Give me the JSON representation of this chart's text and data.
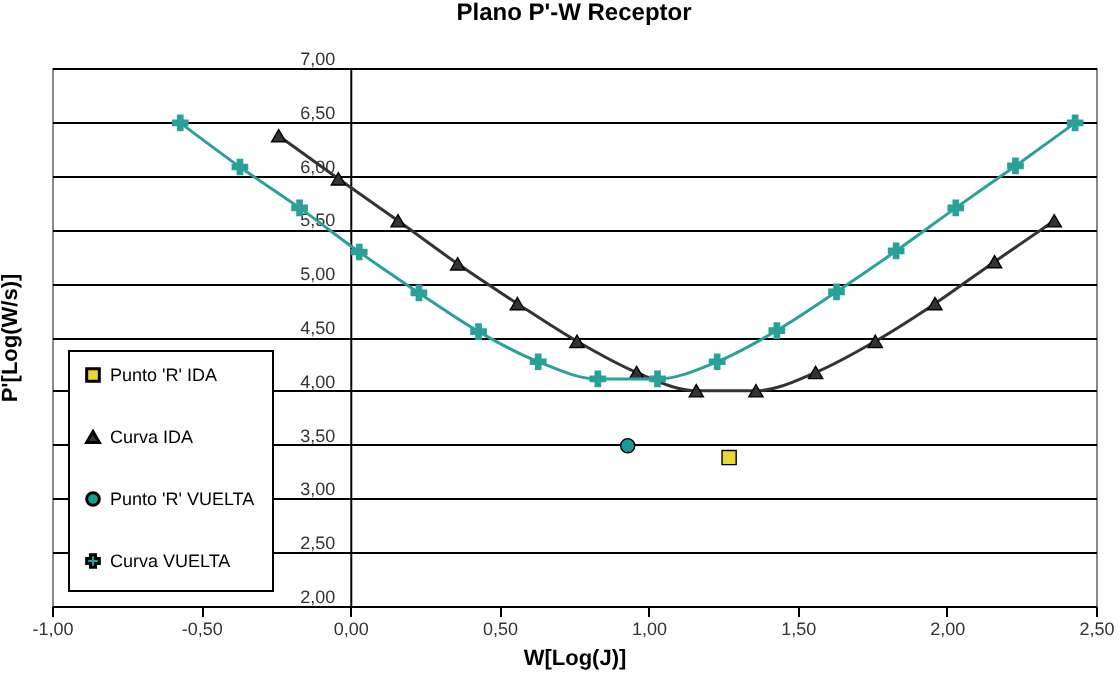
{
  "chart_data": {
    "type": "line",
    "title": "Plano P'-W Receptor",
    "xlabel": "W[Log(J)]",
    "ylabel": "P'[Log(W/s)]",
    "xlim": [
      -1,
      2.5
    ],
    "ylim": [
      2,
      7
    ],
    "xticks": [
      {
        "value": -1,
        "label": "-1,00"
      },
      {
        "value": -0.5,
        "label": "-0,50"
      },
      {
        "value": 0,
        "label": "0,00"
      },
      {
        "value": 0.5,
        "label": "0,50"
      },
      {
        "value": 1,
        "label": "1,00"
      },
      {
        "value": 1.5,
        "label": "1,50"
      },
      {
        "value": 2,
        "label": "2,00"
      },
      {
        "value": 2.5,
        "label": "2,50"
      }
    ],
    "yticks": [
      {
        "value": 2,
        "label": "2,00"
      },
      {
        "value": 2.5,
        "label": "2,50"
      },
      {
        "value": 3,
        "label": "3,00"
      },
      {
        "value": 3.5,
        "label": "3,50"
      },
      {
        "value": 4,
        "label": "4,00"
      },
      {
        "value": 4.5,
        "label": "4,50"
      },
      {
        "value": 5,
        "label": "5,00"
      },
      {
        "value": 5.5,
        "label": "5,50"
      },
      {
        "value": 6,
        "label": "6,00"
      },
      {
        "value": 6.5,
        "label": "6,50"
      },
      {
        "value": 7,
        "label": "7,00"
      }
    ],
    "grid": "y",
    "legend": "bottom left",
    "line_style": "solid",
    "series": [
      {
        "name": "Punto 'R' IDA",
        "type": "scatter",
        "marker": "square",
        "color": "#e8d83a",
        "x": [
          1.27
        ],
        "values": [
          3.38
        ]
      },
      {
        "name": "Curva IDA",
        "marker": "triangle",
        "color": "#333333",
        "x": [
          -0.24,
          -0.04,
          0.16,
          0.36,
          0.56,
          0.76,
          0.96,
          1.16,
          1.36,
          1.56,
          1.76,
          1.96,
          2.16,
          2.36
        ],
        "values": [
          6.37,
          5.97,
          5.58,
          5.18,
          4.81,
          4.46,
          4.17,
          4.0,
          4.0,
          4.17,
          4.46,
          4.81,
          5.2,
          5.58
        ]
      },
      {
        "name": "Punto 'R' VUELTA",
        "type": "scatter",
        "marker": "circle",
        "color": "#1a9a94",
        "x": [
          0.93
        ],
        "values": [
          3.49
        ]
      },
      {
        "name": "Curva VUELTA",
        "marker": "cross",
        "color": "#2aa198",
        "x": [
          -0.57,
          -0.37,
          -0.17,
          0.03,
          0.23,
          0.43,
          0.63,
          0.83,
          1.03,
          1.23,
          1.43,
          1.63,
          1.83,
          2.03,
          2.23,
          2.43
        ],
        "values": [
          6.49,
          6.08,
          5.7,
          5.29,
          4.91,
          4.55,
          4.27,
          4.11,
          4.11,
          4.27,
          4.56,
          4.92,
          5.3,
          5.7,
          6.09,
          6.49
        ]
      }
    ]
  }
}
